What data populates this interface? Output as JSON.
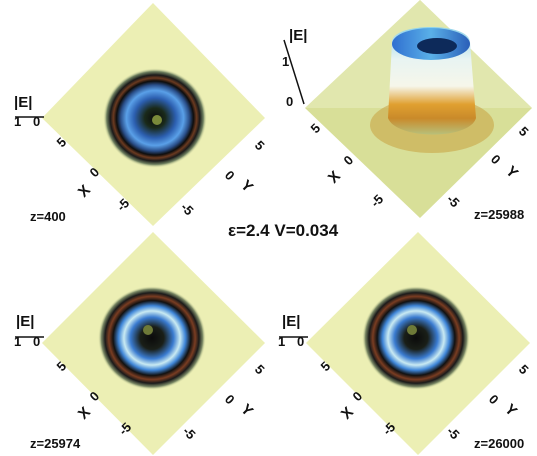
{
  "figure": {
    "center_label": "ε=2.4 V=0.034",
    "panels": [
      {
        "id": "p1",
        "z_label": "z=400",
        "z_axis_label": "|E|",
        "x_axis_label": "X",
        "y_axis_label": "Y",
        "x_ticks": [
          "5",
          "0",
          "-5"
        ],
        "y_ticks": [
          "5",
          "0",
          "-5"
        ],
        "z_ticks": [
          "1",
          "0"
        ],
        "kind": "ring"
      },
      {
        "id": "p2",
        "z_label": "z=25988",
        "z_axis_label": "|E|",
        "x_axis_label": "X",
        "y_axis_label": "Y",
        "x_ticks": [
          "5",
          "0",
          "-5"
        ],
        "y_ticks": [
          "5",
          "0",
          "-5"
        ],
        "z_ticks": [
          "1",
          "0"
        ],
        "kind": "peak"
      },
      {
        "id": "p3",
        "z_label": "z=25974",
        "z_axis_label": "|E|",
        "x_axis_label": "X",
        "y_axis_label": "Y",
        "x_ticks": [
          "5",
          "0",
          "-5"
        ],
        "y_ticks": [
          "5",
          "0",
          "-5"
        ],
        "z_ticks": [
          "1",
          "0"
        ],
        "kind": "ring"
      },
      {
        "id": "p4",
        "z_label": "z=26000",
        "z_axis_label": "|E|",
        "x_axis_label": "X",
        "y_axis_label": "Y",
        "x_ticks": [
          "5",
          "0",
          "-5"
        ],
        "y_ticks": [
          "5",
          "0",
          "-5"
        ],
        "z_ticks": [
          "1",
          "0"
        ],
        "kind": "ring"
      }
    ]
  },
  "colors": {
    "plane": "#ecefb4",
    "ring_blue": "#3f86d8",
    "ring_dark": "#101010",
    "ring_rim": "#a0482a",
    "peak_orange": "#e0a030"
  }
}
